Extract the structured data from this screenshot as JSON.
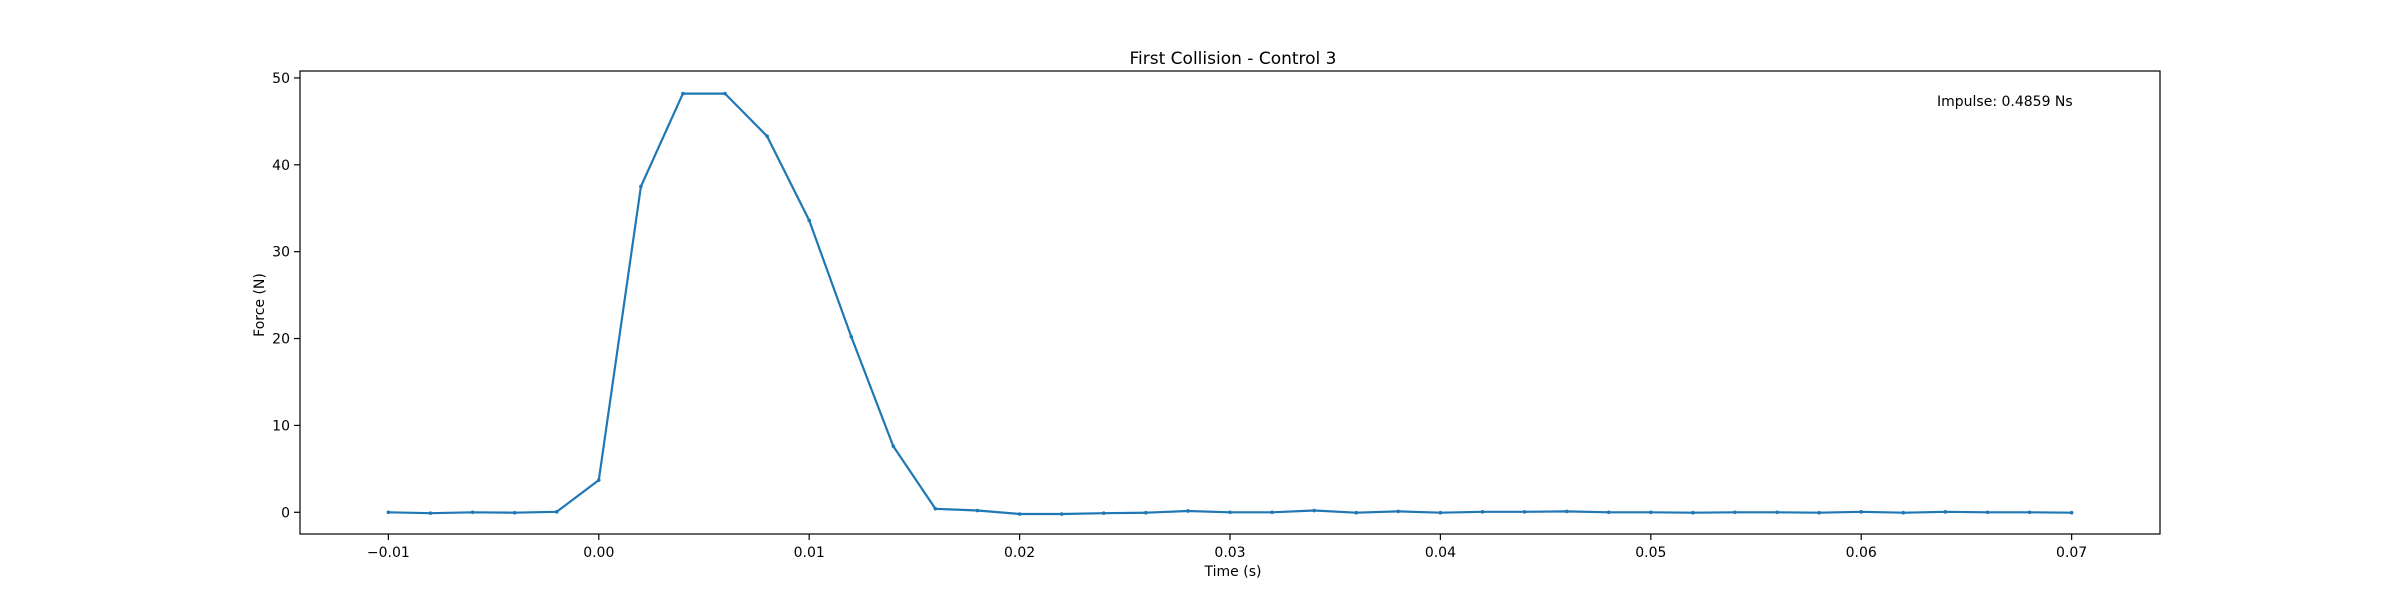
{
  "chart_data": {
    "type": "line",
    "title": "First Collision - Control 3",
    "xlabel": "Time (s)",
    "ylabel": "Force (N)",
    "xlim": [
      -0.0142,
      0.0742
    ],
    "ylim": [
      -2.5,
      50.8
    ],
    "xticks": [
      -0.01,
      0.0,
      0.01,
      0.02,
      0.03,
      0.04,
      0.05,
      0.06,
      0.07
    ],
    "xtick_labels": [
      "−0.01",
      "0.00",
      "0.01",
      "0.02",
      "0.03",
      "0.04",
      "0.05",
      "0.06",
      "0.07"
    ],
    "yticks": [
      0,
      10,
      20,
      30,
      40,
      50
    ],
    "ytick_labels": [
      "0",
      "10",
      "20",
      "30",
      "40",
      "50"
    ],
    "grid": false,
    "legend": null,
    "annotation": "Impulse: 0.4859 Ns",
    "series": [
      {
        "color": "#1f77b4",
        "marker": "point",
        "x": [
          -0.01,
          -0.008,
          -0.006,
          -0.004,
          -0.002,
          0.0,
          0.002,
          0.004,
          0.006,
          0.008,
          0.01,
          0.012,
          0.014,
          0.016,
          0.018,
          0.02,
          0.022,
          0.024,
          0.026,
          0.028,
          0.03,
          0.032,
          0.034,
          0.036,
          0.038,
          0.04,
          0.042,
          0.044,
          0.046,
          0.048,
          0.05,
          0.052,
          0.054,
          0.056,
          0.058,
          0.06,
          0.062,
          0.064,
          0.066,
          0.068,
          0.07
        ],
        "y": [
          0.0,
          -0.1,
          0.0,
          -0.05,
          0.05,
          3.7,
          37.5,
          48.2,
          48.2,
          43.3,
          33.6,
          20.2,
          7.6,
          0.4,
          0.2,
          -0.2,
          -0.2,
          -0.1,
          -0.05,
          0.15,
          0.0,
          0.0,
          0.2,
          -0.05,
          0.1,
          -0.05,
          0.05,
          0.05,
          0.1,
          0.0,
          0.0,
          -0.05,
          0.0,
          0.0,
          -0.05,
          0.05,
          -0.05,
          0.05,
          0.0,
          0.0,
          -0.05
        ]
      }
    ]
  }
}
